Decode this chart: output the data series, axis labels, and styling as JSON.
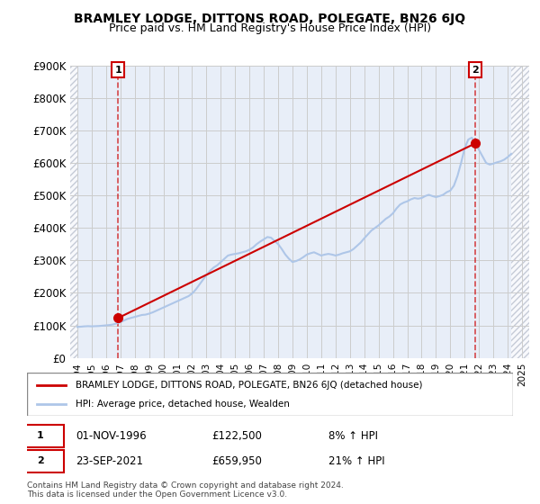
{
  "title": "BRAMLEY LODGE, DITTONS ROAD, POLEGATE, BN26 6JQ",
  "subtitle": "Price paid vs. HM Land Registry's House Price Index (HPI)",
  "ylabel": "",
  "ylim": [
    0,
    900000
  ],
  "yticks": [
    0,
    100000,
    200000,
    300000,
    400000,
    500000,
    600000,
    700000,
    800000,
    900000
  ],
  "ytick_labels": [
    "£0",
    "£100K",
    "£200K",
    "£300K",
    "£400K",
    "£500K",
    "£600K",
    "£700K",
    "£800K",
    "£900K"
  ],
  "xlim_start": 1993.5,
  "xlim_end": 2025.5,
  "xticks": [
    1994,
    1995,
    1996,
    1997,
    1998,
    1999,
    2000,
    2001,
    2002,
    2003,
    2004,
    2005,
    2006,
    2007,
    2008,
    2009,
    2010,
    2011,
    2012,
    2013,
    2014,
    2015,
    2016,
    2017,
    2018,
    2019,
    2020,
    2021,
    2022,
    2023,
    2024,
    2025
  ],
  "sale1_x": 1996.833,
  "sale1_y": 122500,
  "sale1_label": "1",
  "sale1_date": "01-NOV-1996",
  "sale1_price": "£122,500",
  "sale1_hpi": "8% ↑ HPI",
  "sale2_x": 2021.722,
  "sale2_y": 659950,
  "sale2_label": "2",
  "sale2_date": "23-SEP-2021",
  "sale2_price": "£659,950",
  "sale2_hpi": "21% ↑ HPI",
  "hpi_color": "#aec6e8",
  "sale_color": "#cc0000",
  "grid_color": "#cccccc",
  "hatch_color": "#d0d8e8",
  "bg_color": "#e8eef8",
  "legend_text1": "BRAMLEY LODGE, DITTONS ROAD, POLEGATE, BN26 6JQ (detached house)",
  "legend_text2": "HPI: Average price, detached house, Wealden",
  "footer": "Contains HM Land Registry data © Crown copyright and database right 2024.\nThis data is licensed under the Open Government Licence v3.0.",
  "hpi_data_x": [
    1994.0,
    1994.25,
    1994.5,
    1994.75,
    1995.0,
    1995.25,
    1995.5,
    1995.75,
    1996.0,
    1996.25,
    1996.5,
    1996.75,
    1997.0,
    1997.25,
    1997.5,
    1997.75,
    1998.0,
    1998.25,
    1998.5,
    1998.75,
    1999.0,
    1999.25,
    1999.5,
    1999.75,
    2000.0,
    2000.25,
    2000.5,
    2000.75,
    2001.0,
    2001.25,
    2001.5,
    2001.75,
    2002.0,
    2002.25,
    2002.5,
    2002.75,
    2003.0,
    2003.25,
    2003.5,
    2003.75,
    2004.0,
    2004.25,
    2004.5,
    2004.75,
    2005.0,
    2005.25,
    2005.5,
    2005.75,
    2006.0,
    2006.25,
    2006.5,
    2006.75,
    2007.0,
    2007.25,
    2007.5,
    2007.75,
    2008.0,
    2008.25,
    2008.5,
    2008.75,
    2009.0,
    2009.25,
    2009.5,
    2009.75,
    2010.0,
    2010.25,
    2010.5,
    2010.75,
    2011.0,
    2011.25,
    2011.5,
    2011.75,
    2012.0,
    2012.25,
    2012.5,
    2012.75,
    2013.0,
    2013.25,
    2013.5,
    2013.75,
    2014.0,
    2014.25,
    2014.5,
    2014.75,
    2015.0,
    2015.25,
    2015.5,
    2015.75,
    2016.0,
    2016.25,
    2016.5,
    2016.75,
    2017.0,
    2017.25,
    2017.5,
    2017.75,
    2018.0,
    2018.25,
    2018.5,
    2018.75,
    2019.0,
    2019.25,
    2019.5,
    2019.75,
    2020.0,
    2020.25,
    2020.5,
    2020.75,
    2021.0,
    2021.25,
    2021.5,
    2021.75,
    2022.0,
    2022.25,
    2022.5,
    2022.75,
    2023.0,
    2023.25,
    2023.5,
    2023.75,
    2024.0,
    2024.25
  ],
  "hpi_data_y": [
    95000,
    96000,
    97000,
    97500,
    97000,
    97500,
    98000,
    99000,
    100000,
    101000,
    103000,
    106000,
    110000,
    115000,
    120000,
    123000,
    126000,
    129000,
    132000,
    133000,
    136000,
    140000,
    145000,
    150000,
    155000,
    160000,
    165000,
    170000,
    175000,
    180000,
    185000,
    190000,
    198000,
    210000,
    225000,
    240000,
    255000,
    268000,
    278000,
    285000,
    295000,
    305000,
    315000,
    318000,
    320000,
    322000,
    325000,
    328000,
    333000,
    340000,
    350000,
    358000,
    365000,
    372000,
    370000,
    360000,
    350000,
    335000,
    318000,
    305000,
    295000,
    298000,
    303000,
    310000,
    318000,
    322000,
    325000,
    320000,
    315000,
    318000,
    320000,
    318000,
    315000,
    318000,
    322000,
    325000,
    328000,
    335000,
    345000,
    355000,
    368000,
    380000,
    392000,
    400000,
    408000,
    418000,
    428000,
    435000,
    445000,
    460000,
    472000,
    478000,
    482000,
    488000,
    492000,
    490000,
    492000,
    498000,
    502000,
    498000,
    495000,
    498000,
    502000,
    510000,
    515000,
    530000,
    560000,
    600000,
    645000,
    672000,
    678000,
    660000,
    640000,
    620000,
    600000,
    595000,
    598000,
    602000,
    605000,
    610000,
    618000,
    628000
  ],
  "sold_line_x": [
    1996.833,
    2021.722
  ],
  "sold_line_y": [
    122500,
    659950
  ]
}
